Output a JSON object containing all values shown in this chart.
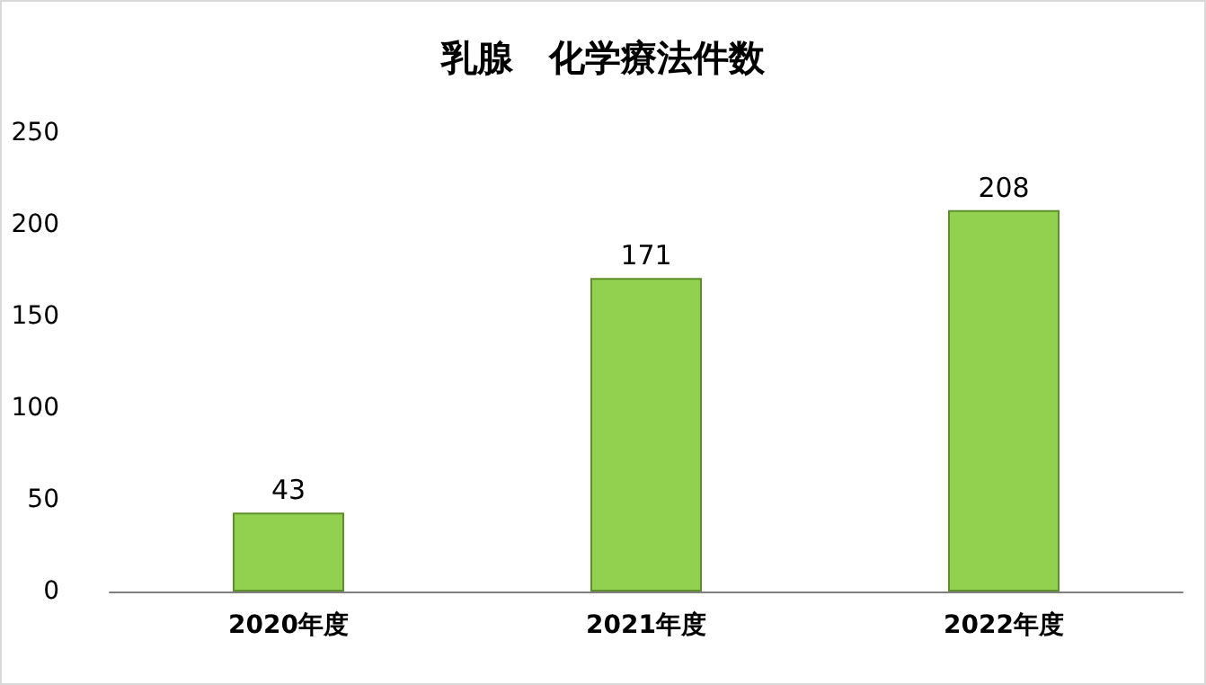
{
  "chart_data": {
    "type": "bar",
    "title": "乳腺　化学療法件数",
    "categories": [
      "2020年度",
      "2021年度",
      "2022年度"
    ],
    "values": [
      43,
      171,
      208
    ],
    "color": "#92d050",
    "ylim": [
      0,
      250
    ],
    "yticks": [
      0,
      50,
      100,
      150,
      200,
      250
    ],
    "grid": false,
    "data_labels": true
  }
}
